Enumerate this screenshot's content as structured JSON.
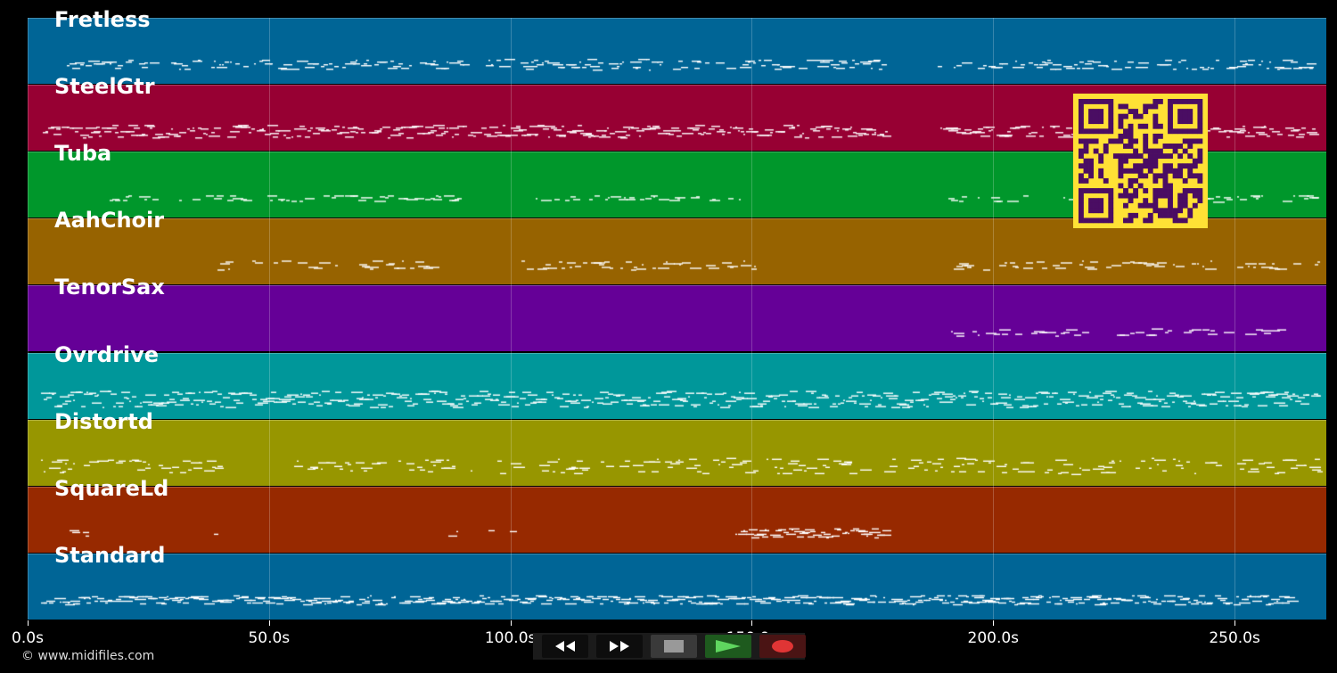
{
  "colors": {
    "background": "#000000",
    "note": "#ffffff",
    "qr_fg": "#4a0d63",
    "qr_bg": "#ffe135"
  },
  "tracks": [
    {
      "name": "Fretless",
      "color": "#006596"
    },
    {
      "name": "SteelGtr",
      "color": "#970033"
    },
    {
      "name": "Tuba",
      "color": "#00972b"
    },
    {
      "name": "AahChoir",
      "color": "#976300"
    },
    {
      "name": "TenorSax",
      "color": "#650097"
    },
    {
      "name": "Ovrdrive",
      "color": "#00979a"
    },
    {
      "name": "Distortd",
      "color": "#979600"
    },
    {
      "name": "SquareLd",
      "color": "#972900"
    },
    {
      "name": "Standard",
      "color": "#006596"
    }
  ],
  "time_axis": {
    "unit": "s",
    "ticks": [
      "0.0s",
      "50.0s",
      "100.0s",
      "150.0s",
      "200.0s",
      "250.0s"
    ],
    "tick_values": [
      0,
      50,
      100,
      150,
      200,
      250
    ],
    "range": [
      0,
      269
    ]
  },
  "transport": {
    "buttons": [
      {
        "id": "rewind",
        "icon": "rewind-icon"
      },
      {
        "id": "fast-forward",
        "icon": "fast-forward-icon"
      },
      {
        "id": "stop",
        "icon": "stop-icon"
      },
      {
        "id": "play",
        "icon": "play-icon"
      },
      {
        "id": "record",
        "icon": "record-icon"
      }
    ]
  },
  "credit": "© www.midifiles.com",
  "qr_code": {
    "icon": "qr-code-icon"
  }
}
